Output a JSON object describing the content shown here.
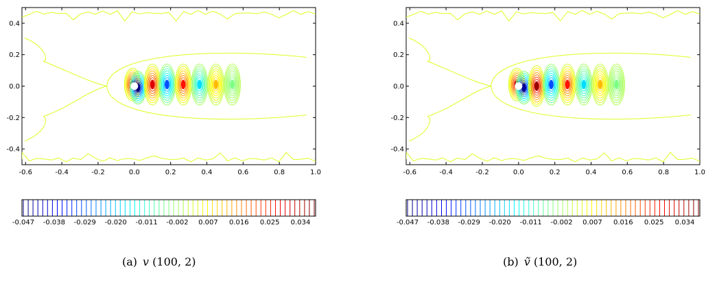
{
  "chart_data": [
    {
      "type": "contour",
      "caption_label": "(a)",
      "caption_symbol": "v",
      "caption_args": "(100, 2)",
      "xlim": [
        -0.62,
        1.0
      ],
      "ylim": [
        -0.5,
        0.5
      ],
      "x_ticks": [
        -0.6,
        -0.4,
        -0.2,
        0.0,
        0.2,
        0.4,
        0.6,
        0.8,
        1.0
      ],
      "x_tick_labels": [
        "-0.6",
        "-0.4",
        "-0.2",
        "0.0",
        "0.2",
        "0.4",
        "0.6",
        "0.8",
        "1.0"
      ],
      "y_ticks": [
        0.4,
        0.2,
        0.0,
        -0.2,
        -0.4
      ],
      "y_tick_labels": [
        "0.4",
        "0.2",
        "0.0",
        "-0.2",
        "-0.4"
      ],
      "colorbar": {
        "min": -0.047,
        "max": 0.038,
        "levels": 60,
        "tick_values": [
          -0.047,
          -0.038,
          -0.029,
          -0.02,
          -0.011,
          -0.002,
          0.007,
          0.016,
          0.025,
          0.034
        ],
        "tick_labels": [
          "-0.047",
          "-0.038",
          "-0.029",
          "-0.020",
          "-0.011",
          "-0.002",
          "0.007",
          "0.016",
          "0.025",
          "0.034"
        ],
        "colormap": "jet"
      },
      "lobes": [
        {
          "x": -0.01,
          "y": 0.01,
          "value": 0.034
        },
        {
          "x": 0.02,
          "y": -0.01,
          "value": -0.047
        },
        {
          "x": 0.1,
          "y": 0.01,
          "value": 0.03
        },
        {
          "x": 0.18,
          "y": 0.01,
          "value": -0.03
        },
        {
          "x": 0.27,
          "y": 0.01,
          "value": 0.026
        },
        {
          "x": 0.36,
          "y": 0.01,
          "value": -0.018
        },
        {
          "x": 0.45,
          "y": 0.01,
          "value": 0.012
        },
        {
          "x": 0.54,
          "y": 0.01,
          "value": -0.005
        }
      ]
    },
    {
      "type": "contour",
      "caption_label": "(b)",
      "caption_symbol": "ṽ",
      "caption_args": "(100, 2)",
      "xlim": [
        -0.62,
        1.0
      ],
      "ylim": [
        -0.5,
        0.5
      ],
      "x_ticks": [
        -0.6,
        -0.4,
        -0.2,
        0.0,
        0.2,
        0.4,
        0.6,
        0.8,
        1.0
      ],
      "x_tick_labels": [
        "-0.6",
        "-0.4",
        "-0.2",
        "0.0",
        "0.2",
        "0.4",
        "0.6",
        "0.8",
        "1.0"
      ],
      "y_ticks": [
        0.4,
        0.2,
        0.0,
        -0.2,
        -0.4
      ],
      "y_tick_labels": [
        "0.4",
        "0.2",
        "0.0",
        "-0.2",
        "-0.4"
      ],
      "colorbar": {
        "min": -0.047,
        "max": 0.038,
        "levels": 60,
        "tick_values": [
          -0.047,
          -0.038,
          -0.029,
          -0.02,
          -0.011,
          -0.002,
          0.007,
          0.016,
          0.025,
          0.034
        ],
        "tick_labels": [
          "-0.047",
          "-0.038",
          "-0.029",
          "-0.020",
          "-0.011",
          "-0.002",
          "0.007",
          "0.016",
          "0.025",
          "0.034"
        ],
        "colormap": "jet"
      },
      "lobes": [
        {
          "x": -0.01,
          "y": 0.01,
          "value": 0.034
        },
        {
          "x": 0.03,
          "y": -0.01,
          "value": -0.045
        },
        {
          "x": 0.1,
          "y": 0.0,
          "value": 0.036
        },
        {
          "x": 0.18,
          "y": 0.01,
          "value": -0.03
        },
        {
          "x": 0.27,
          "y": 0.01,
          "value": 0.026
        },
        {
          "x": 0.36,
          "y": 0.01,
          "value": -0.018
        },
        {
          "x": 0.45,
          "y": 0.01,
          "value": 0.012
        },
        {
          "x": 0.54,
          "y": 0.01,
          "value": -0.005
        }
      ]
    }
  ]
}
